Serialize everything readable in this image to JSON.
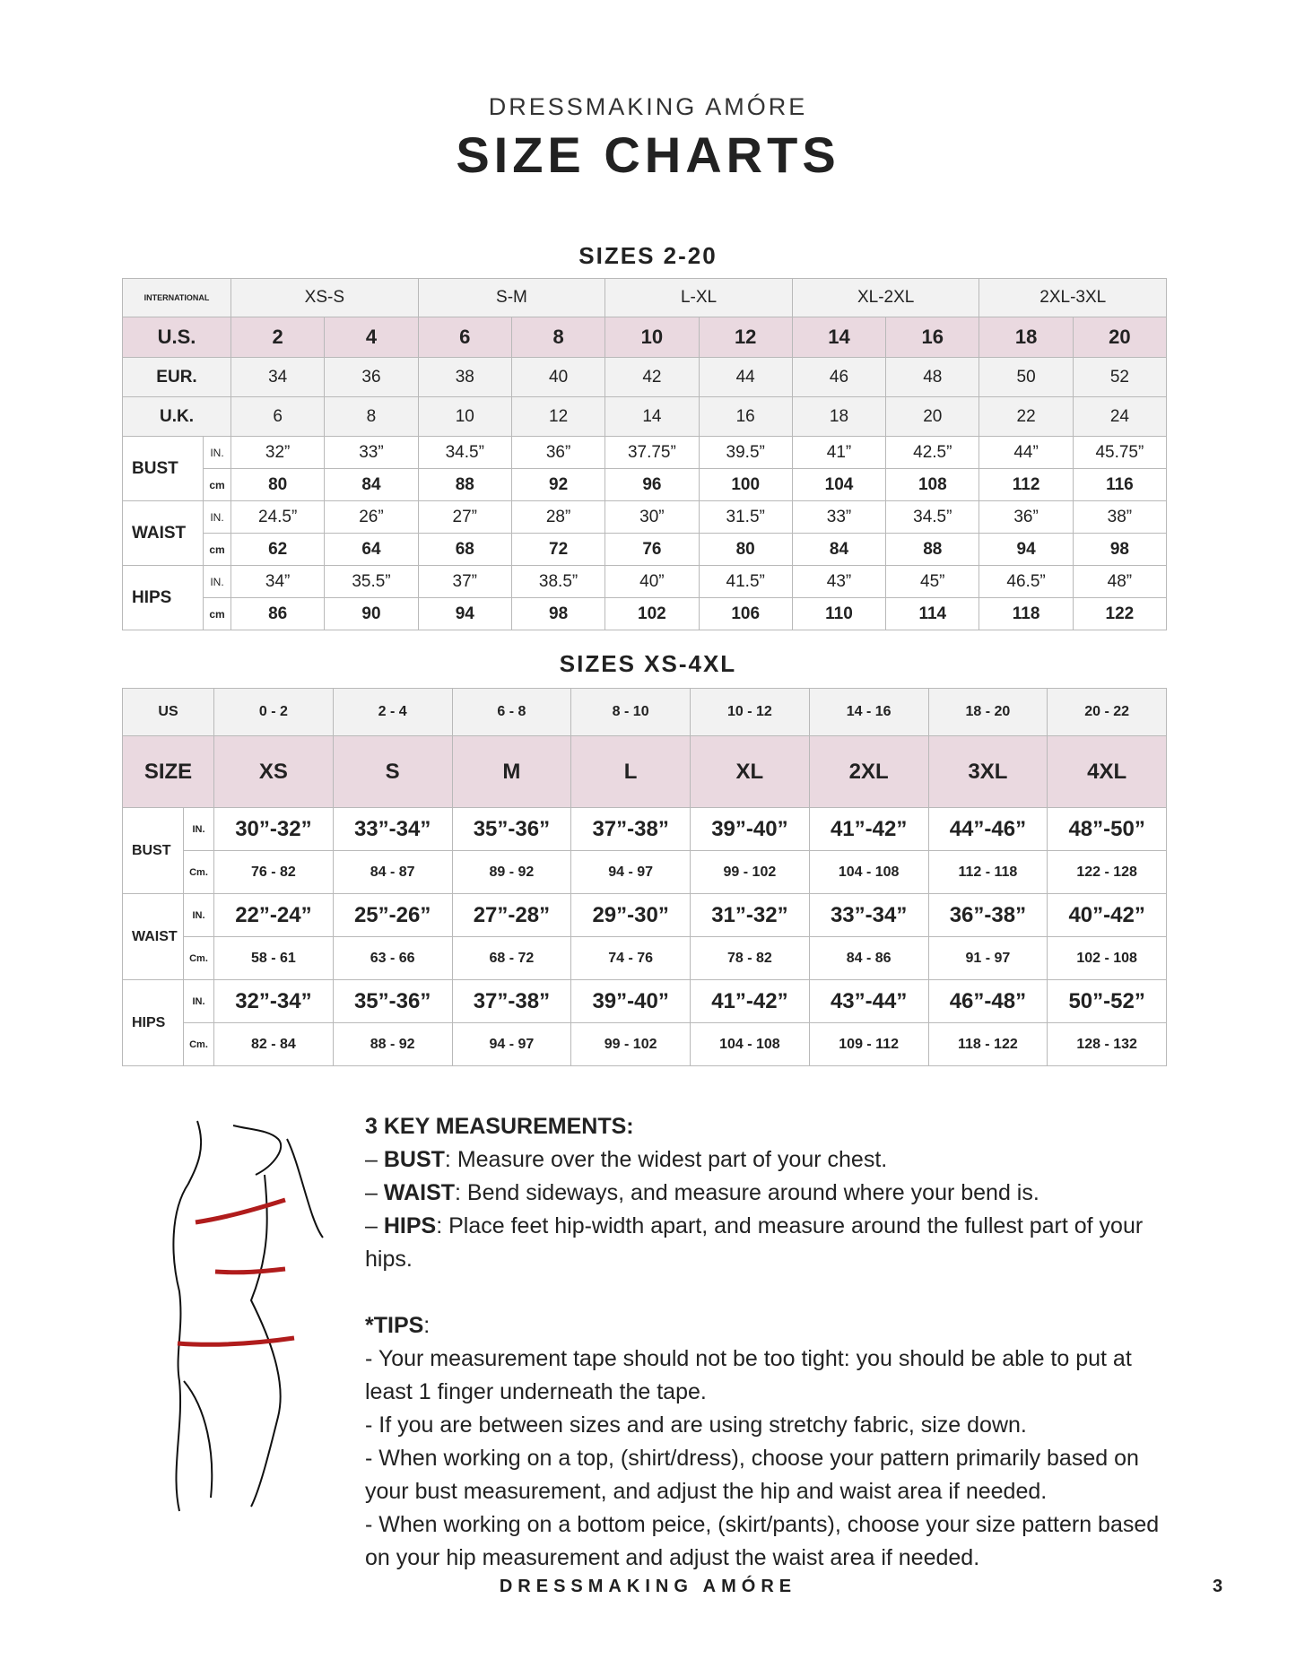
{
  "header": {
    "brand": "DRESSMAKING AMÓRE",
    "title": "SIZE CHARTS"
  },
  "table1": {
    "title": "SIZES 2-20",
    "intl_label": "INTERNATIONAL",
    "intl": [
      "XS-S",
      "S-M",
      "L-XL",
      "XL-2XL",
      "2XL-3XL"
    ],
    "us_label": "U.S.",
    "us": [
      "2",
      "4",
      "6",
      "8",
      "10",
      "12",
      "14",
      "16",
      "18",
      "20"
    ],
    "eur_label": "EUR.",
    "eur": [
      "34",
      "36",
      "38",
      "40",
      "42",
      "44",
      "46",
      "48",
      "50",
      "52"
    ],
    "uk_label": "U.K.",
    "uk": [
      "6",
      "8",
      "10",
      "12",
      "14",
      "16",
      "18",
      "20",
      "22",
      "24"
    ],
    "in_unit": "IN.",
    "cm_unit": "cm",
    "measures": [
      {
        "label": "BUST",
        "in": [
          "32”",
          "33”",
          "34.5”",
          "36”",
          "37.75”",
          "39.5”",
          "41”",
          "42.5”",
          "44”",
          "45.75”"
        ],
        "cm": [
          "80",
          "84",
          "88",
          "92",
          "96",
          "100",
          "104",
          "108",
          "112",
          "116"
        ]
      },
      {
        "label": "WAIST",
        "in": [
          "24.5”",
          "26”",
          "27”",
          "28”",
          "30”",
          "31.5”",
          "33”",
          "34.5”",
          "36”",
          "38”"
        ],
        "cm": [
          "62",
          "64",
          "68",
          "72",
          "76",
          "80",
          "84",
          "88",
          "94",
          "98"
        ]
      },
      {
        "label": "HIPS",
        "in": [
          "34”",
          "35.5”",
          "37”",
          "38.5”",
          "40”",
          "41.5”",
          "43”",
          "45”",
          "46.5”",
          "48”"
        ],
        "cm": [
          "86",
          "90",
          "94",
          "98",
          "102",
          "106",
          "110",
          "114",
          "118",
          "122"
        ]
      }
    ]
  },
  "table2": {
    "title": "SIZES XS-4XL",
    "us_label": "US",
    "us": [
      "0 - 2",
      "2 - 4",
      "6 - 8",
      "8 - 10",
      "10 - 12",
      "14 - 16",
      "18 - 20",
      "20 - 22"
    ],
    "size_label": "SIZE",
    "sizes": [
      "XS",
      "S",
      "M",
      "L",
      "XL",
      "2XL",
      "3XL",
      "4XL"
    ],
    "in_unit": "IN.",
    "cm_unit": "Cm.",
    "measures": [
      {
        "label": "BUST",
        "in": [
          "30”-32”",
          "33”-34”",
          "35”-36”",
          "37”-38”",
          "39”-40”",
          "41”-42”",
          "44”-46”",
          "48”-50”"
        ],
        "cm": [
          "76 - 82",
          "84 - 87",
          "89 - 92",
          "94 - 97",
          "99 - 102",
          "104 - 108",
          "112 - 118",
          "122 - 128"
        ]
      },
      {
        "label": "WAIST",
        "in": [
          "22”-24”",
          "25”-26”",
          "27”-28”",
          "29”-30”",
          "31”-32”",
          "33”-34”",
          "36”-38”",
          "40”-42”"
        ],
        "cm": [
          "58 - 61",
          "63 - 66",
          "68 - 72",
          "74 - 76",
          "78 - 82",
          "84 - 86",
          "91 - 97",
          "102 - 108"
        ]
      },
      {
        "label": "HIPS",
        "in": [
          "32”-34”",
          "35”-36”",
          "37”-38”",
          "39”-40”",
          "41”-42”",
          "43”-44”",
          "46”-48”",
          "50”-52”"
        ],
        "cm": [
          "82 - 84",
          "88 - 92",
          "94 - 97",
          "99 - 102",
          "104 - 108",
          "109 - 112",
          "118 - 122",
          "128 - 132"
        ]
      }
    ]
  },
  "notes": {
    "heading": "3 KEY MEASUREMENTS:",
    "items": [
      {
        "key": "BUST",
        "text": ": Measure over the widest part of your chest."
      },
      {
        "key": "WAIST",
        "text": ": Bend sideways, and measure around where your bend is."
      },
      {
        "key": "HIPS",
        "text": ": Place feet hip-width apart, and measure around the fullest part of your hips."
      }
    ],
    "tips_heading": "*TIPS",
    "tips": [
      "- Your measurement tape should not be too tight: you should be able to put at least 1 finger underneath the tape.",
      "- If you are between sizes and are using stretchy fabric, size down.",
      "- When working on a top, (shirt/dress), choose your pattern primarily based on your bust measurement, and adjust the hip and waist area if needed.",
      "- When working on a bottom peice, (skirt/pants), choose your size pattern based on your hip measurement and adjust the waist area if needed."
    ]
  },
  "footer": {
    "brand": "DRESSMAKING AMÓRE",
    "page": "3"
  },
  "colors": {
    "pink": "#ead9e0",
    "grey": "#f2f2f2",
    "tape": "#b01c1c"
  }
}
